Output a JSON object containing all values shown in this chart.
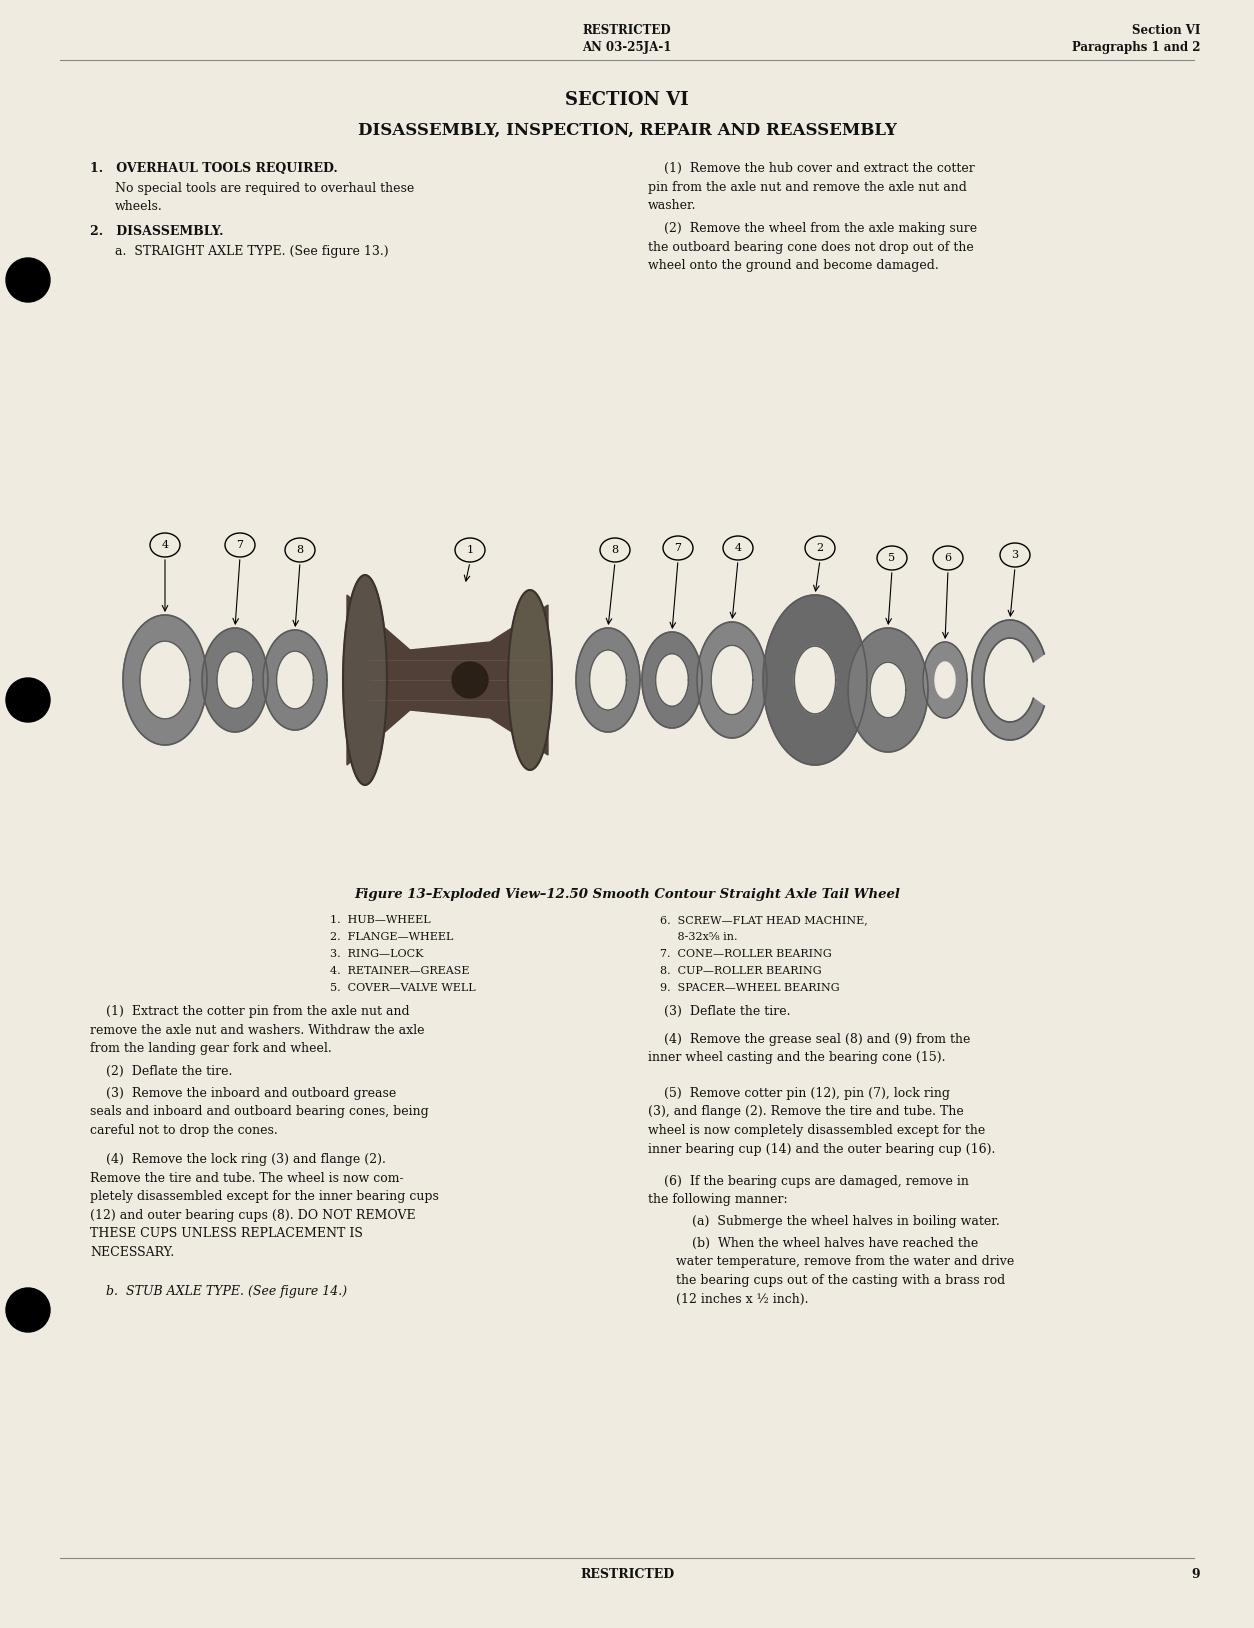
{
  "bg_color": "#f0ebe0",
  "text_color": "#111111",
  "header_restricted": "RESTRICTED",
  "header_doc": "AN 03-25JA-1",
  "header_section": "Section VI",
  "header_paragraphs": "Paragraphs 1 and 2",
  "section_title": "SECTION VI",
  "section_subtitle": "DISASSEMBLY, INSPECTION, REPAIR AND REASSEMBLY",
  "para1_heading": "1.   OVERHAUL TOOLS REQUIRED.",
  "para1_body": "No special tools are required to overhaul these\nwheels.",
  "para2_heading": "2.   DISASSEMBLY.",
  "para2a": "a.  STRAIGHT AXLE TYPE. (See figure 13.)",
  "right_col_para1": "    (1)  Remove the hub cover and extract the cotter\npin from the axle nut and remove the axle nut and\nwasher.",
  "right_col_para2": "    (2)  Remove the wheel from the axle making sure\nthe outboard bearing cone does not drop out of the\nwheel onto the ground and become damaged.",
  "figure_caption": "Figure 13–Exploded View–12.50 Smooth Contour Straight Axle Tail Wheel",
  "parts_list_col1": [
    "1.  HUB—WHEEL",
    "2.  FLANGE—WHEEL",
    "3.  RING—LOCK",
    "4.  RETAINER—GREASE",
    "5.  COVER—VALVE WELL"
  ],
  "parts_list_col2": [
    "6.  SCREW—FLAT HEAD MACHINE,",
    "     8-32x⅝ in.",
    "7.  CONE—ROLLER BEARING",
    "8.  CUP—ROLLER BEARING",
    "9.  SPACER—WHEEL BEARING"
  ],
  "bottom_left_para1": "    (1)  Extract the cotter pin from the axle nut and\nremove the axle nut and washers. Withdraw the axle\nfrom the landing gear fork and wheel.",
  "bottom_left_para2": "    (2)  Deflate the tire.",
  "bottom_left_para3": "    (3)  Remove the inboard and outboard grease\nseals and inboard and outboard bearing cones, being\ncareful not to drop the cones.",
  "bottom_left_para4": "    (4)  Remove the lock ring (3) and flange (2).\nRemove the tire and tube. The wheel is now com-\npletely disassembled except for the inner bearing cups\n(12) and outer bearing cups (8). DO NOT REMOVE\nTHESE CUPS UNLESS REPLACEMENT IS\nNECESSARY.",
  "bottom_left_para5": "    b.  STUB AXLE TYPE. (See figure 14.)",
  "bottom_right_para1": "    (3)  Deflate the tire.",
  "bottom_right_para2": "    (4)  Remove the grease seal (8) and (9) from the\ninner wheel casting and the bearing cone (15).",
  "bottom_right_para3": "    (5)  Remove cotter pin (12), pin (7), lock ring\n(3), and flange (2). Remove the tire and tube. The\nwheel is now completely disassembled except for the\ninner bearing cup (14) and the outer bearing cup (16).",
  "bottom_right_para4": "    (6)  If the bearing cups are damaged, remove in\nthe following manner:",
  "bottom_right_para5": "    (a)  Submerge the wheel halves in boiling water.",
  "bottom_right_para6": "    (b)  When the wheel halves have reached the\nwater temperature, remove from the water and drive\nthe bearing cups out of the casting with a brass rod\n(12 inches x ½ inch).",
  "footer_restricted": "RESTRICTED",
  "footer_page": "9"
}
